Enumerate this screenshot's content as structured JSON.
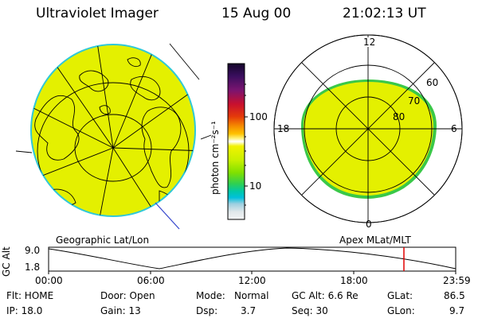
{
  "header": {
    "title": "Ultraviolet Imager",
    "date": "15 Aug 00",
    "time": "21:02:13 UT"
  },
  "left_panel": {
    "label": "Geographic Lat/Lon"
  },
  "right_panel": {
    "label": "Apex MLat/MLT",
    "mlt_labels": {
      "top": "12",
      "left": "18",
      "right": "6",
      "bottom": "0"
    },
    "lat_labels": [
      "60",
      "70",
      "80"
    ]
  },
  "colorbar": {
    "unit_label": "photon cm⁻²s⁻¹",
    "ticks": [
      "100",
      "10"
    ],
    "colors": [
      "#1a0a2e",
      "#3a1060",
      "#6a1a8a",
      "#9a1a6a",
      "#c8102e",
      "#e03010",
      "#f07a00",
      "#ffb000",
      "#fff080",
      "#ffffff",
      "#e8f000",
      "#c8f000",
      "#90e000",
      "#40d040",
      "#00c8a0",
      "#00c0d8",
      "#a0d0e0",
      "#e0e8ea",
      "#f4f4f4"
    ]
  },
  "altitude_plot": {
    "ylabel": "GC Alt",
    "yticks": [
      "9.0",
      "1.8"
    ],
    "xticks": [
      "00:00",
      "06:00",
      "12:00",
      "18:00",
      "23:59"
    ],
    "current_marker_color": "#e00000"
  },
  "info": {
    "flt": "Flt: HOME",
    "door": "Door: Open",
    "mode_label": "Mode:",
    "mode_value": "Normal",
    "gc_alt": "GC Alt: 6.6 Re",
    "glat_label": "GLat:",
    "glat_value": "86.5",
    "ip": "IP: 18.0",
    "gain": "Gain: 13",
    "dsp_label": "Dsp:",
    "dsp_value": "3.7",
    "seq": "Seq: 30",
    "glon_label": "GLon:",
    "glon_value": "9.7"
  },
  "colors": {
    "fill": "#e4f000",
    "rim": "#30d060"
  }
}
